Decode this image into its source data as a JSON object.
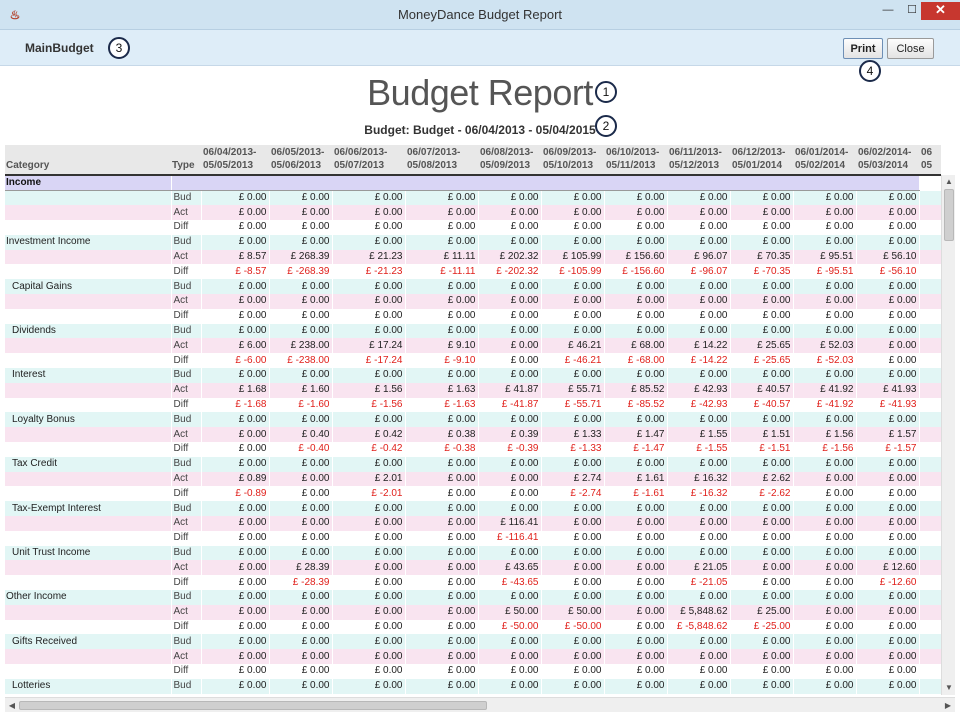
{
  "window": {
    "title": "MoneyDance Budget Report",
    "app_icon": "java-cup-icon",
    "controls": {
      "minimize": "—",
      "maximize": "☐",
      "close": "✕"
    }
  },
  "toolbar": {
    "budget_name": "MainBudget",
    "print_label": "Print",
    "close_label": "Close"
  },
  "callouts": [
    "1",
    "2",
    "3",
    "4"
  ],
  "report": {
    "title": "Budget Report",
    "subtitle": "Budget: Budget - 06/04/2013 - 05/04/2015"
  },
  "table": {
    "col_category": "Category",
    "col_type": "Type",
    "periods": [
      [
        "06/04/2013-",
        "05/05/2013"
      ],
      [
        "06/05/2013-",
        "05/06/2013"
      ],
      [
        "06/06/2013-",
        "05/07/2013"
      ],
      [
        "06/07/2013-",
        "05/08/2013"
      ],
      [
        "06/08/2013-",
        "05/09/2013"
      ],
      [
        "06/09/2013-",
        "05/10/2013"
      ],
      [
        "06/10/2013-",
        "05/11/2013"
      ],
      [
        "06/11/2013-",
        "05/12/2013"
      ],
      [
        "06/12/2013-",
        "05/01/2014"
      ],
      [
        "06/01/2014-",
        "05/02/2014"
      ],
      [
        "06/02/2014-",
        "05/03/2014"
      ],
      [
        "06",
        "05"
      ]
    ],
    "section": "Income",
    "rows": [
      {
        "cat": "",
        "type": "Bud",
        "vals": [
          "£ 0.00",
          "£ 0.00",
          "£ 0.00",
          "£ 0.00",
          "£ 0.00",
          "£ 0.00",
          "£ 0.00",
          "£ 0.00",
          "£ 0.00",
          "£ 0.00",
          "£ 0.00"
        ]
      },
      {
        "cat": "",
        "type": "Act",
        "vals": [
          "£ 0.00",
          "£ 0.00",
          "£ 0.00",
          "£ 0.00",
          "£ 0.00",
          "£ 0.00",
          "£ 0.00",
          "£ 0.00",
          "£ 0.00",
          "£ 0.00",
          "£ 0.00"
        ]
      },
      {
        "cat": "",
        "type": "Diff",
        "vals": [
          "£ 0.00",
          "£ 0.00",
          "£ 0.00",
          "£ 0.00",
          "£ 0.00",
          "£ 0.00",
          "£ 0.00",
          "£ 0.00",
          "£ 0.00",
          "£ 0.00",
          "£ 0.00"
        ]
      },
      {
        "cat": "Investment Income",
        "type": "Bud",
        "vals": [
          "£ 0.00",
          "£ 0.00",
          "£ 0.00",
          "£ 0.00",
          "£ 0.00",
          "£ 0.00",
          "£ 0.00",
          "£ 0.00",
          "£ 0.00",
          "£ 0.00",
          "£ 0.00"
        ]
      },
      {
        "cat": "",
        "type": "Act",
        "vals": [
          "£ 8.57",
          "£ 268.39",
          "£ 21.23",
          "£ 11.11",
          "£ 202.32",
          "£ 105.99",
          "£ 156.60",
          "£ 96.07",
          "£ 70.35",
          "£ 95.51",
          "£ 56.10"
        ]
      },
      {
        "cat": "",
        "type": "Diff",
        "vals": [
          "£ -8.57",
          "£ -268.39",
          "£ -21.23",
          "£ -11.11",
          "£ -202.32",
          "£ -105.99",
          "£ -156.60",
          "£ -96.07",
          "£ -70.35",
          "£ -95.51",
          "£ -56.10"
        ]
      },
      {
        "cat": "Capital Gains",
        "indent": true,
        "type": "Bud",
        "vals": [
          "£ 0.00",
          "£ 0.00",
          "£ 0.00",
          "£ 0.00",
          "£ 0.00",
          "£ 0.00",
          "£ 0.00",
          "£ 0.00",
          "£ 0.00",
          "£ 0.00",
          "£ 0.00"
        ]
      },
      {
        "cat": "",
        "type": "Act",
        "vals": [
          "£ 0.00",
          "£ 0.00",
          "£ 0.00",
          "£ 0.00",
          "£ 0.00",
          "£ 0.00",
          "£ 0.00",
          "£ 0.00",
          "£ 0.00",
          "£ 0.00",
          "£ 0.00"
        ]
      },
      {
        "cat": "",
        "type": "Diff",
        "vals": [
          "£ 0.00",
          "£ 0.00",
          "£ 0.00",
          "£ 0.00",
          "£ 0.00",
          "£ 0.00",
          "£ 0.00",
          "£ 0.00",
          "£ 0.00",
          "£ 0.00",
          "£ 0.00"
        ]
      },
      {
        "cat": "Dividends",
        "indent": true,
        "type": "Bud",
        "vals": [
          "£ 0.00",
          "£ 0.00",
          "£ 0.00",
          "£ 0.00",
          "£ 0.00",
          "£ 0.00",
          "£ 0.00",
          "£ 0.00",
          "£ 0.00",
          "£ 0.00",
          "£ 0.00"
        ]
      },
      {
        "cat": "",
        "type": "Act",
        "vals": [
          "£ 6.00",
          "£ 238.00",
          "£ 17.24",
          "£ 9.10",
          "£ 0.00",
          "£ 46.21",
          "£ 68.00",
          "£ 14.22",
          "£ 25.65",
          "£ 52.03",
          "£ 0.00"
        ]
      },
      {
        "cat": "",
        "type": "Diff",
        "vals": [
          "£ -6.00",
          "£ -238.00",
          "£ -17.24",
          "£ -9.10",
          "£ 0.00",
          "£ -46.21",
          "£ -68.00",
          "£ -14.22",
          "£ -25.65",
          "£ -52.03",
          "£ 0.00"
        ]
      },
      {
        "cat": "Interest",
        "indent": true,
        "type": "Bud",
        "vals": [
          "£ 0.00",
          "£ 0.00",
          "£ 0.00",
          "£ 0.00",
          "£ 0.00",
          "£ 0.00",
          "£ 0.00",
          "£ 0.00",
          "£ 0.00",
          "£ 0.00",
          "£ 0.00"
        ]
      },
      {
        "cat": "",
        "type": "Act",
        "vals": [
          "£ 1.68",
          "£ 1.60",
          "£ 1.56",
          "£ 1.63",
          "£ 41.87",
          "£ 55.71",
          "£ 85.52",
          "£ 42.93",
          "£ 40.57",
          "£ 41.92",
          "£ 41.93"
        ]
      },
      {
        "cat": "",
        "type": "Diff",
        "vals": [
          "£ -1.68",
          "£ -1.60",
          "£ -1.56",
          "£ -1.63",
          "£ -41.87",
          "£ -55.71",
          "£ -85.52",
          "£ -42.93",
          "£ -40.57",
          "£ -41.92",
          "£ -41.93"
        ]
      },
      {
        "cat": "Loyalty Bonus",
        "indent": true,
        "type": "Bud",
        "vals": [
          "£ 0.00",
          "£ 0.00",
          "£ 0.00",
          "£ 0.00",
          "£ 0.00",
          "£ 0.00",
          "£ 0.00",
          "£ 0.00",
          "£ 0.00",
          "£ 0.00",
          "£ 0.00"
        ]
      },
      {
        "cat": "",
        "type": "Act",
        "vals": [
          "£ 0.00",
          "£ 0.40",
          "£ 0.42",
          "£ 0.38",
          "£ 0.39",
          "£ 1.33",
          "£ 1.47",
          "£ 1.55",
          "£ 1.51",
          "£ 1.56",
          "£ 1.57"
        ]
      },
      {
        "cat": "",
        "type": "Diff",
        "vals": [
          "£ 0.00",
          "£ -0.40",
          "£ -0.42",
          "£ -0.38",
          "£ -0.39",
          "£ -1.33",
          "£ -1.47",
          "£ -1.55",
          "£ -1.51",
          "£ -1.56",
          "£ -1.57"
        ]
      },
      {
        "cat": "Tax Credit",
        "indent": true,
        "type": "Bud",
        "vals": [
          "£ 0.00",
          "£ 0.00",
          "£ 0.00",
          "£ 0.00",
          "£ 0.00",
          "£ 0.00",
          "£ 0.00",
          "£ 0.00",
          "£ 0.00",
          "£ 0.00",
          "£ 0.00"
        ]
      },
      {
        "cat": "",
        "type": "Act",
        "vals": [
          "£ 0.89",
          "£ 0.00",
          "£ 2.01",
          "£ 0.00",
          "£ 0.00",
          "£ 2.74",
          "£ 1.61",
          "£ 16.32",
          "£ 2.62",
          "£ 0.00",
          "£ 0.00"
        ]
      },
      {
        "cat": "",
        "type": "Diff",
        "vals": [
          "£ -0.89",
          "£ 0.00",
          "£ -2.01",
          "£ 0.00",
          "£ 0.00",
          "£ -2.74",
          "£ -1.61",
          "£ -16.32",
          "£ -2.62",
          "£ 0.00",
          "£ 0.00"
        ]
      },
      {
        "cat": "Tax-Exempt Interest",
        "indent": true,
        "type": "Bud",
        "vals": [
          "£ 0.00",
          "£ 0.00",
          "£ 0.00",
          "£ 0.00",
          "£ 0.00",
          "£ 0.00",
          "£ 0.00",
          "£ 0.00",
          "£ 0.00",
          "£ 0.00",
          "£ 0.00"
        ]
      },
      {
        "cat": "",
        "type": "Act",
        "vals": [
          "£ 0.00",
          "£ 0.00",
          "£ 0.00",
          "£ 0.00",
          "£ 116.41",
          "£ 0.00",
          "£ 0.00",
          "£ 0.00",
          "£ 0.00",
          "£ 0.00",
          "£ 0.00"
        ]
      },
      {
        "cat": "",
        "type": "Diff",
        "vals": [
          "£ 0.00",
          "£ 0.00",
          "£ 0.00",
          "£ 0.00",
          "£ -116.41",
          "£ 0.00",
          "£ 0.00",
          "£ 0.00",
          "£ 0.00",
          "£ 0.00",
          "£ 0.00"
        ]
      },
      {
        "cat": "Unit Trust Income",
        "indent": true,
        "type": "Bud",
        "vals": [
          "£ 0.00",
          "£ 0.00",
          "£ 0.00",
          "£ 0.00",
          "£ 0.00",
          "£ 0.00",
          "£ 0.00",
          "£ 0.00",
          "£ 0.00",
          "£ 0.00",
          "£ 0.00"
        ]
      },
      {
        "cat": "",
        "type": "Act",
        "vals": [
          "£ 0.00",
          "£ 28.39",
          "£ 0.00",
          "£ 0.00",
          "£ 43.65",
          "£ 0.00",
          "£ 0.00",
          "£ 21.05",
          "£ 0.00",
          "£ 0.00",
          "£ 12.60"
        ]
      },
      {
        "cat": "",
        "type": "Diff",
        "vals": [
          "£ 0.00",
          "£ -28.39",
          "£ 0.00",
          "£ 0.00",
          "£ -43.65",
          "£ 0.00",
          "£ 0.00",
          "£ -21.05",
          "£ 0.00",
          "£ 0.00",
          "£ -12.60"
        ]
      },
      {
        "cat": "Other Income",
        "type": "Bud",
        "vals": [
          "£ 0.00",
          "£ 0.00",
          "£ 0.00",
          "£ 0.00",
          "£ 0.00",
          "£ 0.00",
          "£ 0.00",
          "£ 0.00",
          "£ 0.00",
          "£ 0.00",
          "£ 0.00"
        ]
      },
      {
        "cat": "",
        "type": "Act",
        "vals": [
          "£ 0.00",
          "£ 0.00",
          "£ 0.00",
          "£ 0.00",
          "£ 50.00",
          "£ 50.00",
          "£ 0.00",
          "£ 5,848.62",
          "£ 25.00",
          "£ 0.00",
          "£ 0.00"
        ]
      },
      {
        "cat": "",
        "type": "Diff",
        "vals": [
          "£ 0.00",
          "£ 0.00",
          "£ 0.00",
          "£ 0.00",
          "£ -50.00",
          "£ -50.00",
          "£ 0.00",
          "£ -5,848.62",
          "£ -25.00",
          "£ 0.00",
          "£ 0.00"
        ]
      },
      {
        "cat": "Gifts Received",
        "indent": true,
        "type": "Bud",
        "vals": [
          "£ 0.00",
          "£ 0.00",
          "£ 0.00",
          "£ 0.00",
          "£ 0.00",
          "£ 0.00",
          "£ 0.00",
          "£ 0.00",
          "£ 0.00",
          "£ 0.00",
          "£ 0.00"
        ]
      },
      {
        "cat": "",
        "type": "Act",
        "vals": [
          "£ 0.00",
          "£ 0.00",
          "£ 0.00",
          "£ 0.00",
          "£ 0.00",
          "£ 0.00",
          "£ 0.00",
          "£ 0.00",
          "£ 0.00",
          "£ 0.00",
          "£ 0.00"
        ]
      },
      {
        "cat": "",
        "type": "Diff",
        "vals": [
          "£ 0.00",
          "£ 0.00",
          "£ 0.00",
          "£ 0.00",
          "£ 0.00",
          "£ 0.00",
          "£ 0.00",
          "£ 0.00",
          "£ 0.00",
          "£ 0.00",
          "£ 0.00"
        ]
      },
      {
        "cat": "Lotteries",
        "indent": true,
        "type": "Bud",
        "vals": [
          "£ 0.00",
          "£ 0.00",
          "£ 0.00",
          "£ 0.00",
          "£ 0.00",
          "£ 0.00",
          "£ 0.00",
          "£ 0.00",
          "£ 0.00",
          "£ 0.00",
          "£ 0.00"
        ]
      }
    ]
  },
  "scrollbars": {
    "up": "▲",
    "down": "▼",
    "left": "◀",
    "right": "▶"
  },
  "colors": {
    "bud_row": "#e2f6f5",
    "act_row": "#f9e4f0",
    "negative": "#e0201b",
    "section_row": "#d9d5f5",
    "close_button": "#c7372f"
  }
}
